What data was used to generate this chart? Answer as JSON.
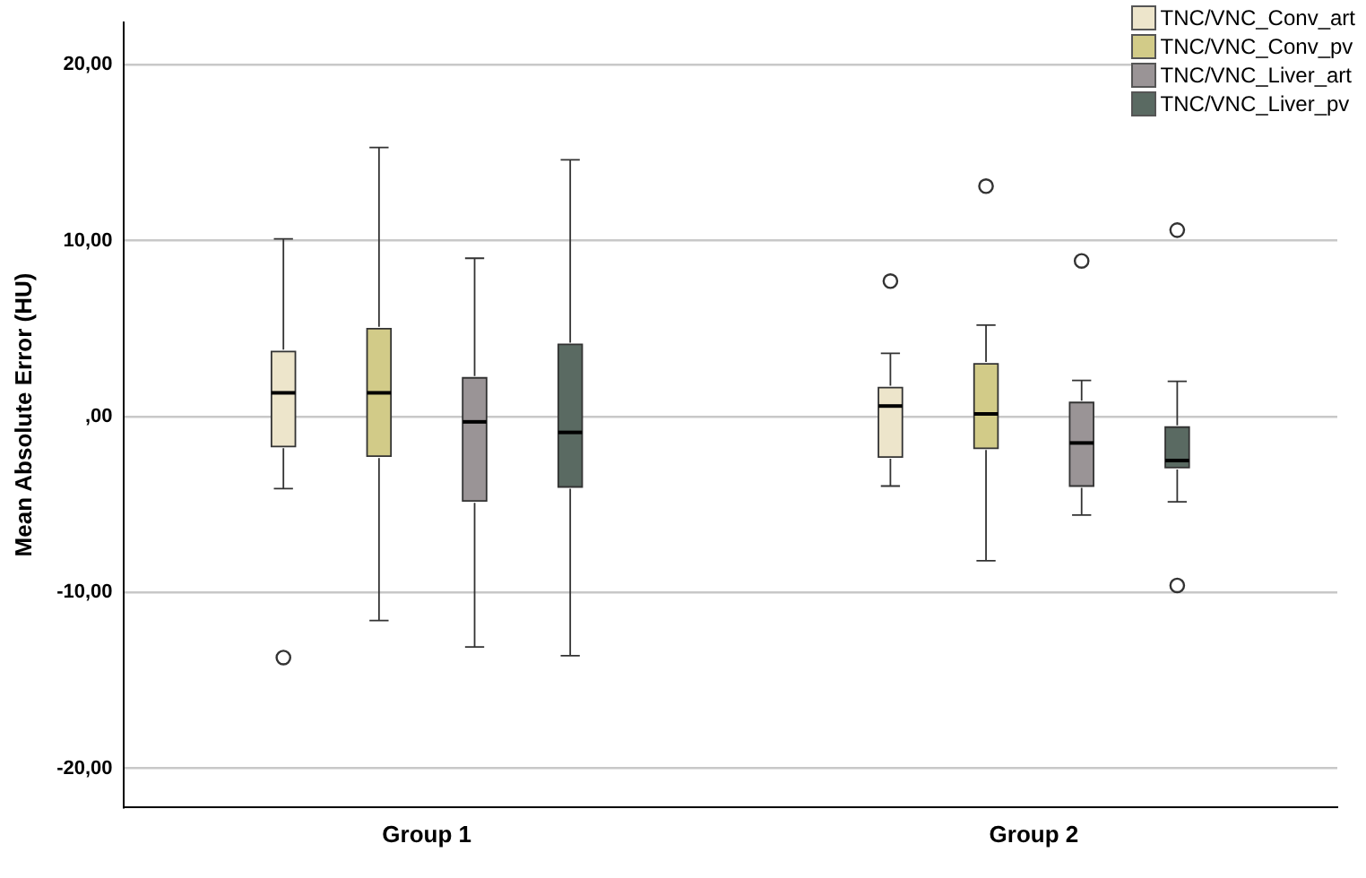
{
  "chart_data": {
    "type": "box",
    "ylabel": "Mean Absolute Error (HU)",
    "categories": [
      "Group 1",
      "Group 2"
    ],
    "ylim": [
      -22.2,
      22.4
    ],
    "yticks": [
      {
        "value": -20,
        "label": "-20,00"
      },
      {
        "value": -10,
        "label": "-10,00"
      },
      {
        "value": 0,
        "label": ",00"
      },
      {
        "value": 10,
        "label": "10,00"
      },
      {
        "value": 20,
        "label": "20,00"
      }
    ],
    "grid": "y",
    "legend": "top right",
    "series": [
      {
        "name": "TNC/VNC_Conv_art",
        "color": "#ede5cb",
        "boxes": [
          {
            "low": -4.1,
            "q1": -1.7,
            "median": 1.35,
            "q3": 3.7,
            "high": 10.1,
            "outliers": [
              -13.7
            ]
          },
          {
            "low": -3.95,
            "q1": -2.3,
            "median": 0.6,
            "q3": 1.65,
            "high": 3.6,
            "outliers": [
              7.7
            ]
          }
        ]
      },
      {
        "name": "TNC/VNC_Conv_pv",
        "color": "#d2cb88",
        "boxes": [
          {
            "low": -11.6,
            "q1": -2.25,
            "median": 1.35,
            "q3": 5.0,
            "high": 15.3
          },
          {
            "low": -8.2,
            "q1": -1.8,
            "median": 0.15,
            "q3": 3.0,
            "high": 5.2,
            "outliers": [
              13.1
            ]
          }
        ]
      },
      {
        "name": "TNC/VNC_Liver_art",
        "color": "#9a9496",
        "boxes": [
          {
            "low": -13.1,
            "q1": -4.8,
            "median": -0.3,
            "q3": 2.2,
            "high": 9.0
          },
          {
            "low": -5.6,
            "q1": -3.95,
            "median": -1.5,
            "q3": 0.8,
            "high": 2.05,
            "outliers": [
              8.85
            ]
          }
        ]
      },
      {
        "name": "TNC/VNC_Liver_pv",
        "color": "#5a6a62",
        "boxes": [
          {
            "low": -13.6,
            "q1": -4.0,
            "median": -0.9,
            "q3": 4.1,
            "high": 14.6
          },
          {
            "low": -4.85,
            "q1": -2.9,
            "median": -2.5,
            "q3": -0.6,
            "high": 2.0,
            "outliers": [
              10.6,
              -9.6
            ]
          }
        ]
      }
    ]
  }
}
